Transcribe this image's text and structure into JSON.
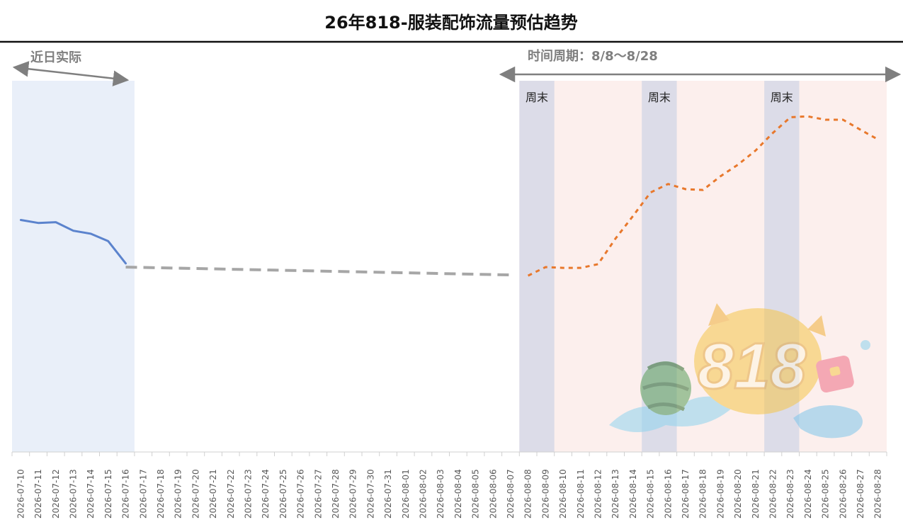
{
  "chart_data": {
    "type": "line",
    "title": "26年818-服装配饰流量预估趋势",
    "xlabel": "",
    "ylabel": "",
    "grid": false,
    "legend": "none",
    "dates": [
      "2026-07-10",
      "2026-07-11",
      "2026-07-12",
      "2026-07-13",
      "2026-07-14",
      "2026-07-15",
      "2026-07-16",
      "2026-07-17",
      "2026-07-18",
      "2026-07-19",
      "2026-07-20",
      "2026-07-21",
      "2026-07-22",
      "2026-07-23",
      "2026-07-24",
      "2026-07-25",
      "2026-07-26",
      "2026-07-27",
      "2026-07-28",
      "2026-07-29",
      "2026-07-30",
      "2026-07-31",
      "2026-08-01",
      "2026-08-02",
      "2026-08-03",
      "2026-08-04",
      "2026-08-05",
      "2026-08-06",
      "2026-08-07",
      "2026-08-08",
      "2026-08-09",
      "2026-08-10",
      "2026-08-11",
      "2026-08-12",
      "2026-08-13",
      "2026-08-14",
      "2026-08-15",
      "2026-08-16",
      "2026-08-17",
      "2026-08-18",
      "2026-08-19",
      "2026-08-20",
      "2026-08-21",
      "2026-08-22",
      "2026-08-23",
      "2026-08-24",
      "2026-08-25",
      "2026-08-26",
      "2026-08-27",
      "2026-08-28"
    ],
    "series": [
      {
        "style": "solid",
        "color": "#5b83cd",
        "x": [
          "2026-07-10",
          "2026-07-11",
          "2026-07-12",
          "2026-07-13",
          "2026-07-14",
          "2026-07-15",
          "2026-07-16"
        ],
        "values": [
          62.5,
          61.7,
          61.9,
          59.6,
          58.8,
          56.8,
          50.8
        ]
      },
      {
        "style": "dashed",
        "color": "#a6a6a6",
        "x": [
          "2026-07-16",
          "2026-08-07"
        ],
        "values": [
          49.8,
          47.7
        ]
      },
      {
        "style": "dashed",
        "color": "#e8782c",
        "x": [
          "2026-08-08",
          "2026-08-09",
          "2026-08-10",
          "2026-08-11",
          "2026-08-12",
          "2026-08-13",
          "2026-08-14",
          "2026-08-15",
          "2026-08-16",
          "2026-08-17",
          "2026-08-18",
          "2026-08-19",
          "2026-08-20",
          "2026-08-21",
          "2026-08-22",
          "2026-08-23",
          "2026-08-24",
          "2026-08-25",
          "2026-08-26",
          "2026-08-27",
          "2026-08-28"
        ],
        "values": [
          47.5,
          49.8,
          49.6,
          49.6,
          50.6,
          57.5,
          63.6,
          69.9,
          72.2,
          70.8,
          70.6,
          74.3,
          77.4,
          81.2,
          86.0,
          90.2,
          90.4,
          89.5,
          89.5,
          86.8,
          84.2
        ]
      }
    ],
    "regions": {
      "actual": {
        "label": "近日实际",
        "from": "2026-07-10",
        "to": "2026-07-16",
        "color": "#e9eff9"
      },
      "period": {
        "label": "时间周期：8/8～8/28",
        "from": "2026-08-08",
        "to": "2026-08-28",
        "color": "#fcefed"
      },
      "weekends": [
        {
          "label": "周末",
          "from": "2026-08-08",
          "to": "2026-08-09"
        },
        {
          "label": "周末",
          "from": "2026-08-15",
          "to": "2026-08-16"
        },
        {
          "label": "周末",
          "from": "2026-08-22",
          "to": "2026-08-23"
        }
      ],
      "weekend_color": "#dcdce8"
    },
    "ylim": [
      0,
      100
    ]
  }
}
